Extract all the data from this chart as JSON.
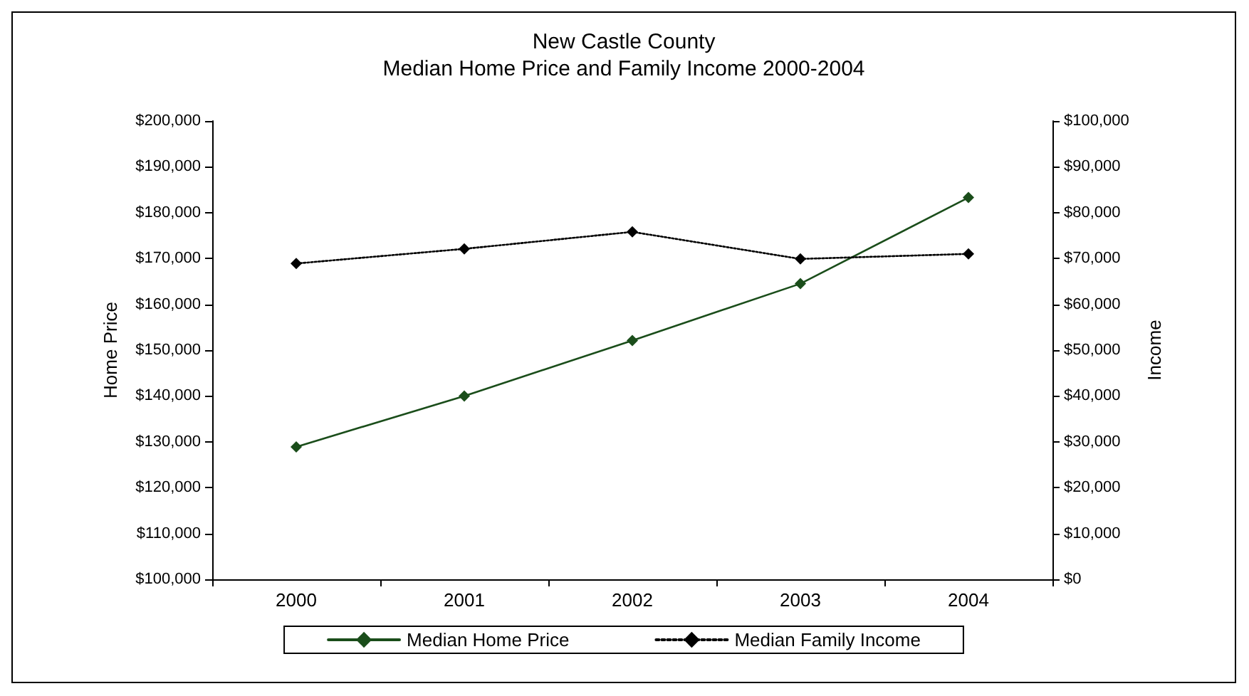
{
  "chart_data": {
    "type": "line",
    "title": "New Castle County",
    "subtitle": "Median Home Price and Family Income 2000-2004",
    "ylabel": "Home Price",
    "y2label": "Income",
    "categories": [
      "2000",
      "2001",
      "2002",
      "2003",
      "2004"
    ],
    "series": [
      {
        "name": "Median Home Price",
        "color": "#1a4d1a",
        "line_style": "solid",
        "values": [
          128900,
          140000,
          152100,
          164500,
          183300
        ]
      },
      {
        "name": "Median Family Income",
        "color": "#000000",
        "line_style": "dotted",
        "axis": "y2",
        "values": [
          68900,
          72100,
          75800,
          69900,
          71000
        ]
      }
    ],
    "ylim": [
      100000,
      200000
    ],
    "yticks": [
      {
        "value": 100000,
        "label": "$100,000"
      },
      {
        "value": 110000,
        "label": "$110,000"
      },
      {
        "value": 120000,
        "label": "$120,000"
      },
      {
        "value": 130000,
        "label": "$130,000"
      },
      {
        "value": 140000,
        "label": "$140,000"
      },
      {
        "value": 150000,
        "label": "$150,000"
      },
      {
        "value": 160000,
        "label": "$160,000"
      },
      {
        "value": 170000,
        "label": "$170,000"
      },
      {
        "value": 180000,
        "label": "$180,000"
      },
      {
        "value": 190000,
        "label": "$190,000"
      },
      {
        "value": 200000,
        "label": "$200,000"
      }
    ],
    "y2lim": [
      0,
      100000
    ],
    "y2ticks": [
      {
        "value": 0,
        "label": "$0"
      },
      {
        "value": 10000,
        "label": "$10,000"
      },
      {
        "value": 20000,
        "label": "$20,000"
      },
      {
        "value": 30000,
        "label": "$30,000"
      },
      {
        "value": 40000,
        "label": "$40,000"
      },
      {
        "value": 50000,
        "label": "$50,000"
      },
      {
        "value": 60000,
        "label": "$60,000"
      },
      {
        "value": 70000,
        "label": "$70,000"
      },
      {
        "value": 80000,
        "label": "$80,000"
      },
      {
        "value": 90000,
        "label": "$90,000"
      },
      {
        "value": 100000,
        "label": "$100,000"
      }
    ],
    "grid": false,
    "legend": "bottom",
    "marker": "diamond"
  }
}
